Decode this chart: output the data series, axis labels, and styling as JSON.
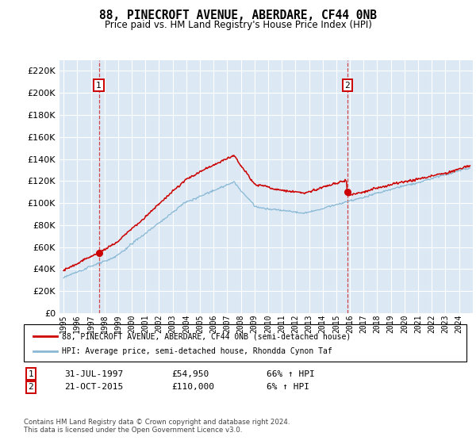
{
  "title": "88, PINECROFT AVENUE, ABERDARE, CF44 0NB",
  "subtitle": "Price paid vs. HM Land Registry's House Price Index (HPI)",
  "ylim": [
    0,
    230000
  ],
  "yticks": [
    0,
    20000,
    40000,
    60000,
    80000,
    100000,
    120000,
    140000,
    160000,
    180000,
    200000,
    220000
  ],
  "plot_bg_color": "#dce9f5",
  "red_line_color": "#cc0000",
  "blue_line_color": "#89b8d4",
  "marker1_date_x": 1997.58,
  "marker1_y": 54950,
  "marker2_date_x": 2015.8,
  "marker2_y": 110000,
  "legend_line1": "88, PINECROFT AVENUE, ABERDARE, CF44 0NB (semi-detached house)",
  "legend_line2": "HPI: Average price, semi-detached house, Rhondda Cynon Taf",
  "table_row1": [
    "1",
    "31-JUL-1997",
    "£54,950",
    "66% ↑ HPI"
  ],
  "table_row2": [
    "2",
    "21-OCT-2015",
    "£110,000",
    "6% ↑ HPI"
  ],
  "footer": "Contains HM Land Registry data © Crown copyright and database right 2024.\nThis data is licensed under the Open Government Licence v3.0.",
  "xlim_min": 1994.7,
  "xlim_max": 2025.0,
  "xtick_years": [
    1995,
    1996,
    1997,
    1998,
    1999,
    2000,
    2001,
    2002,
    2003,
    2004,
    2005,
    2006,
    2007,
    2008,
    2009,
    2010,
    2011,
    2012,
    2013,
    2014,
    2015,
    2016,
    2017,
    2018,
    2019,
    2020,
    2021,
    2022,
    2023,
    2024
  ]
}
